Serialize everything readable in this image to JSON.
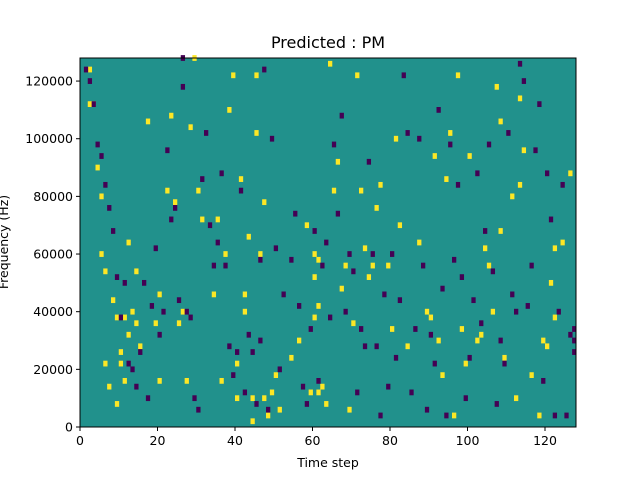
{
  "chart_data": {
    "type": "heatmap",
    "title": "Predicted : PM",
    "xlabel": "Time step",
    "ylabel": "Frequency (Hz)",
    "xlim": [
      0,
      128
    ],
    "ylim": [
      0,
      128000
    ],
    "x_ticks": [
      0,
      20,
      40,
      60,
      80,
      100,
      120
    ],
    "x_tick_labels": [
      "0",
      "20",
      "40",
      "60",
      "80",
      "100",
      "120"
    ],
    "y_ticks": [
      0,
      20000,
      40000,
      60000,
      80000,
      100000,
      120000
    ],
    "y_tick_labels": [
      "0",
      "20000",
      "40000",
      "60000",
      "80000",
      "100000",
      "120000"
    ],
    "grid": false,
    "colormap": "viridis",
    "colors": {
      "background": "#21918c",
      "high": "#fde725",
      "low": "#440154"
    },
    "bins": 128,
    "bin_height_hz": 1000,
    "cells_high": [
      [
        2,
        124000
      ],
      [
        2,
        112000
      ],
      [
        3,
        112000
      ],
      [
        4,
        90000
      ],
      [
        5,
        80000
      ],
      [
        5,
        60000
      ],
      [
        6,
        54000
      ],
      [
        6,
        22000
      ],
      [
        7,
        14000
      ],
      [
        8,
        44000
      ],
      [
        9,
        38000
      ],
      [
        9,
        8000
      ],
      [
        10,
        26000
      ],
      [
        10,
        22000
      ],
      [
        11,
        38000
      ],
      [
        11,
        16000
      ],
      [
        12,
        64000
      ],
      [
        12,
        32000
      ],
      [
        13,
        40000
      ],
      [
        14,
        54000
      ],
      [
        14,
        36000
      ],
      [
        15,
        28000
      ],
      [
        17,
        106000
      ],
      [
        19,
        36000
      ],
      [
        20,
        46000
      ],
      [
        20,
        16000
      ],
      [
        22,
        82000
      ],
      [
        23,
        108000
      ],
      [
        24,
        78000
      ],
      [
        25,
        36000
      ],
      [
        26,
        40000
      ],
      [
        27,
        16000
      ],
      [
        28,
        104000
      ],
      [
        29,
        128000
      ],
      [
        30,
        82000
      ],
      [
        31,
        72000
      ],
      [
        34,
        46000
      ],
      [
        35,
        72000
      ],
      [
        36,
        16000
      ],
      [
        37,
        60000
      ],
      [
        38,
        110000
      ],
      [
        39,
        122000
      ],
      [
        40,
        10000
      ],
      [
        40,
        22000
      ],
      [
        41,
        86000
      ],
      [
        42,
        46000
      ],
      [
        42,
        40000
      ],
      [
        43,
        66000
      ],
      [
        44,
        10000
      ],
      [
        44,
        2000
      ],
      [
        45,
        122000
      ],
      [
        45,
        102000
      ],
      [
        46,
        60000
      ],
      [
        47,
        10000
      ],
      [
        47,
        78000
      ],
      [
        48,
        4000
      ],
      [
        49,
        12000
      ],
      [
        50,
        18000
      ],
      [
        51,
        6000
      ],
      [
        54,
        24000
      ],
      [
        56,
        30000
      ],
      [
        58,
        70000
      ],
      [
        59,
        12000
      ],
      [
        60,
        60000
      ],
      [
        60,
        52000
      ],
      [
        60,
        38000
      ],
      [
        61,
        58000
      ],
      [
        61,
        42000
      ],
      [
        61,
        12000
      ],
      [
        62,
        14000
      ],
      [
        63,
        8000
      ],
      [
        64,
        126000
      ],
      [
        65,
        82000
      ],
      [
        66,
        92000
      ],
      [
        67,
        48000
      ],
      [
        68,
        56000
      ],
      [
        69,
        6000
      ],
      [
        70,
        36000
      ],
      [
        71,
        122000
      ],
      [
        72,
        82000
      ],
      [
        73,
        62000
      ],
      [
        74,
        52000
      ],
      [
        75,
        56000
      ],
      [
        76,
        76000
      ],
      [
        77,
        84000
      ],
      [
        79,
        56000
      ],
      [
        80,
        34000
      ],
      [
        81,
        100000
      ],
      [
        82,
        70000
      ],
      [
        84,
        28000
      ],
      [
        87,
        64000
      ],
      [
        89,
        40000
      ],
      [
        90,
        38000
      ],
      [
        91,
        94000
      ],
      [
        92,
        30000
      ],
      [
        93,
        18000
      ],
      [
        94,
        86000
      ],
      [
        95,
        102000
      ],
      [
        96,
        4000
      ],
      [
        97,
        122000
      ],
      [
        98,
        34000
      ],
      [
        99,
        22000
      ],
      [
        100,
        94000
      ],
      [
        102,
        30000
      ],
      [
        103,
        32000
      ],
      [
        104,
        62000
      ],
      [
        105,
        56000
      ],
      [
        106,
        40000
      ],
      [
        107,
        118000
      ],
      [
        108,
        106000
      ],
      [
        108,
        68000
      ],
      [
        109,
        24000
      ],
      [
        111,
        80000
      ],
      [
        112,
        10000
      ],
      [
        113,
        114000
      ],
      [
        113,
        84000
      ],
      [
        114,
        96000
      ],
      [
        116,
        18000
      ],
      [
        118,
        4000
      ],
      [
        119,
        30000
      ],
      [
        120,
        28000
      ],
      [
        121,
        50000
      ],
      [
        122,
        62000
      ],
      [
        122,
        38000
      ],
      [
        124,
        64000
      ],
      [
        126,
        88000
      ]
    ],
    "cells_low": [
      [
        1,
        124000
      ],
      [
        2,
        120000
      ],
      [
        3,
        112000
      ],
      [
        4,
        98000
      ],
      [
        5,
        94000
      ],
      [
        6,
        84000
      ],
      [
        7,
        76000
      ],
      [
        8,
        68000
      ],
      [
        9,
        52000
      ],
      [
        10,
        38000
      ],
      [
        11,
        50000
      ],
      [
        12,
        22000
      ],
      [
        13,
        20000
      ],
      [
        14,
        14000
      ],
      [
        15,
        26000
      ],
      [
        16,
        50000
      ],
      [
        17,
        10000
      ],
      [
        18,
        42000
      ],
      [
        19,
        62000
      ],
      [
        20,
        32000
      ],
      [
        21,
        40000
      ],
      [
        22,
        96000
      ],
      [
        23,
        72000
      ],
      [
        24,
        76000
      ],
      [
        25,
        44000
      ],
      [
        26,
        128000
      ],
      [
        26,
        118000
      ],
      [
        27,
        40000
      ],
      [
        28,
        38000
      ],
      [
        29,
        10000
      ],
      [
        30,
        6000
      ],
      [
        31,
        86000
      ],
      [
        32,
        102000
      ],
      [
        33,
        70000
      ],
      [
        34,
        56000
      ],
      [
        35,
        64000
      ],
      [
        36,
        88000
      ],
      [
        37,
        56000
      ],
      [
        38,
        28000
      ],
      [
        39,
        18000
      ],
      [
        40,
        26000
      ],
      [
        41,
        82000
      ],
      [
        42,
        12000
      ],
      [
        43,
        32000
      ],
      [
        44,
        26000
      ],
      [
        45,
        8000
      ],
      [
        46,
        58000
      ],
      [
        46,
        30000
      ],
      [
        47,
        124000
      ],
      [
        48,
        6000
      ],
      [
        49,
        100000
      ],
      [
        50,
        62000
      ],
      [
        51,
        20000
      ],
      [
        52,
        46000
      ],
      [
        54,
        58000
      ],
      [
        55,
        74000
      ],
      [
        56,
        42000
      ],
      [
        57,
        14000
      ],
      [
        58,
        8000
      ],
      [
        59,
        34000
      ],
      [
        60,
        68000
      ],
      [
        61,
        16000
      ],
      [
        62,
        56000
      ],
      [
        63,
        64000
      ],
      [
        64,
        38000
      ],
      [
        65,
        98000
      ],
      [
        66,
        74000
      ],
      [
        67,
        108000
      ],
      [
        68,
        40000
      ],
      [
        69,
        60000
      ],
      [
        70,
        54000
      ],
      [
        71,
        12000
      ],
      [
        72,
        34000
      ],
      [
        73,
        28000
      ],
      [
        74,
        92000
      ],
      [
        75,
        60000
      ],
      [
        76,
        28000
      ],
      [
        77,
        4000
      ],
      [
        78,
        46000
      ],
      [
        79,
        14000
      ],
      [
        80,
        60000
      ],
      [
        81,
        24000
      ],
      [
        82,
        44000
      ],
      [
        83,
        122000
      ],
      [
        84,
        102000
      ],
      [
        85,
        12000
      ],
      [
        86,
        34000
      ],
      [
        87,
        100000
      ],
      [
        88,
        56000
      ],
      [
        89,
        6000
      ],
      [
        90,
        32000
      ],
      [
        91,
        22000
      ],
      [
        92,
        110000
      ],
      [
        93,
        48000
      ],
      [
        94,
        4000
      ],
      [
        95,
        98000
      ],
      [
        96,
        58000
      ],
      [
        97,
        84000
      ],
      [
        98,
        52000
      ],
      [
        99,
        10000
      ],
      [
        100,
        24000
      ],
      [
        101,
        44000
      ],
      [
        102,
        88000
      ],
      [
        103,
        36000
      ],
      [
        104,
        68000
      ],
      [
        105,
        98000
      ],
      [
        106,
        54000
      ],
      [
        107,
        8000
      ],
      [
        108,
        30000
      ],
      [
        109,
        22000
      ],
      [
        110,
        102000
      ],
      [
        111,
        46000
      ],
      [
        112,
        40000
      ],
      [
        113,
        126000
      ],
      [
        114,
        120000
      ],
      [
        115,
        42000
      ],
      [
        116,
        56000
      ],
      [
        117,
        96000
      ],
      [
        118,
        112000
      ],
      [
        119,
        16000
      ],
      [
        120,
        88000
      ],
      [
        121,
        72000
      ],
      [
        122,
        4000
      ],
      [
        123,
        40000
      ],
      [
        124,
        84000
      ],
      [
        125,
        4000
      ],
      [
        126,
        32000
      ],
      [
        127,
        34000
      ],
      [
        127,
        30000
      ],
      [
        127,
        26000
      ]
    ]
  }
}
